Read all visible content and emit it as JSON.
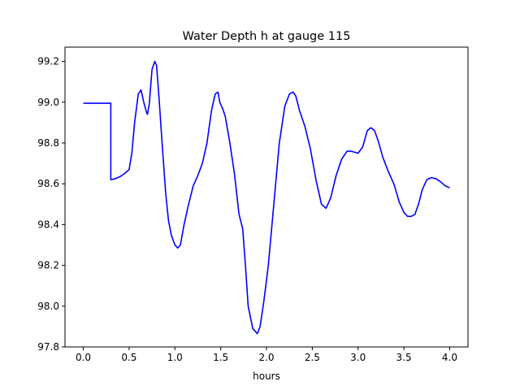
{
  "chart_data": {
    "type": "line",
    "title": "Water Depth h at gauge 115",
    "xlabel": "hours",
    "ylabel": "",
    "xlim": [
      -0.2,
      4.2
    ],
    "ylim": [
      97.8,
      99.27
    ],
    "xticks": [
      0.0,
      0.5,
      1.0,
      1.5,
      2.0,
      2.5,
      3.0,
      3.5,
      4.0
    ],
    "xtick_labels": [
      "0.0",
      "0.5",
      "1.0",
      "1.5",
      "2.0",
      "2.5",
      "3.0",
      "3.5",
      "4.0"
    ],
    "yticks": [
      97.8,
      98.0,
      98.2,
      98.4,
      98.6,
      98.8,
      99.0,
      99.2
    ],
    "ytick_labels": [
      "97.8",
      "98.0",
      "98.2",
      "98.4",
      "98.6",
      "98.8",
      "99.0",
      "99.2"
    ],
    "grid": false,
    "series": [
      {
        "color": "#0000ff",
        "x": [
          0.0,
          0.1,
          0.2,
          0.3,
          0.3001,
          0.35,
          0.4,
          0.45,
          0.5,
          0.53,
          0.56,
          0.6,
          0.63,
          0.66,
          0.69,
          0.7,
          0.72,
          0.75,
          0.78,
          0.8,
          0.83,
          0.86,
          0.9,
          0.93,
          0.96,
          1.0,
          1.03,
          1.06,
          1.1,
          1.15,
          1.2,
          1.25,
          1.3,
          1.35,
          1.4,
          1.44,
          1.47,
          1.49,
          1.52,
          1.55,
          1.6,
          1.65,
          1.7,
          1.74,
          1.77,
          1.8,
          1.85,
          1.9,
          1.93,
          1.97,
          2.02,
          2.08,
          2.14,
          2.2,
          2.25,
          2.29,
          2.32,
          2.36,
          2.42,
          2.48,
          2.54,
          2.6,
          2.65,
          2.7,
          2.76,
          2.82,
          2.88,
          2.92,
          2.96,
          3.0,
          3.05,
          3.1,
          3.14,
          3.18,
          3.22,
          3.27,
          3.33,
          3.39,
          3.45,
          3.5,
          3.54,
          3.58,
          3.62,
          3.66,
          3.7,
          3.75,
          3.8,
          3.85,
          3.9,
          3.95,
          4.0
        ],
        "y": [
          98.995,
          98.995,
          98.995,
          98.995,
          98.62,
          98.625,
          98.635,
          98.65,
          98.67,
          98.75,
          98.9,
          99.04,
          99.06,
          99.0,
          98.95,
          98.94,
          98.99,
          99.16,
          99.2,
          99.18,
          99.0,
          98.8,
          98.55,
          98.42,
          98.35,
          98.3,
          98.285,
          98.3,
          98.4,
          98.5,
          98.59,
          98.64,
          98.7,
          98.8,
          98.96,
          99.04,
          99.05,
          99.0,
          98.97,
          98.93,
          98.8,
          98.65,
          98.45,
          98.38,
          98.2,
          98.0,
          97.89,
          97.865,
          97.9,
          98.02,
          98.2,
          98.5,
          98.8,
          98.98,
          99.04,
          99.05,
          99.03,
          98.96,
          98.88,
          98.77,
          98.62,
          98.5,
          98.48,
          98.53,
          98.64,
          98.72,
          98.76,
          98.76,
          98.755,
          98.75,
          98.78,
          98.86,
          98.875,
          98.86,
          98.81,
          98.73,
          98.66,
          98.6,
          98.51,
          98.46,
          98.44,
          98.44,
          98.45,
          98.5,
          98.57,
          98.62,
          98.63,
          98.625,
          98.61,
          98.59,
          98.58
        ]
      }
    ]
  }
}
